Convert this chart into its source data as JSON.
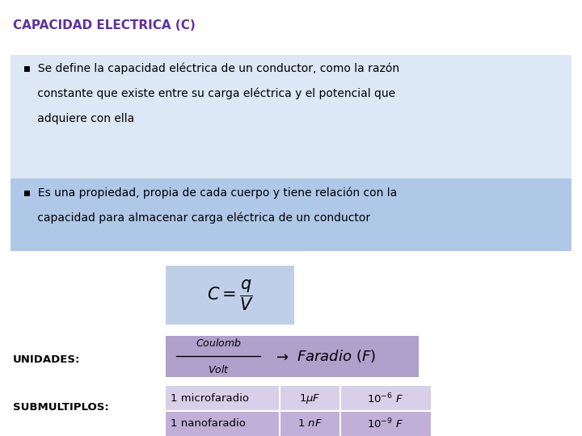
{
  "title": "CAPACIDAD ELECTRICA (C)",
  "title_color": "#6030a0",
  "background_color": "#ffffff",
  "bullet1_line1": "  ▪  Se define la capacidad eléctrica de un conductor, como la razón",
  "bullet1_line2": "      constante que existe entre su carga eléctrica y el potencial que",
  "bullet1_line3": "      adquiere con ella",
  "bullet2_line1": "  ▪  Es una propiedad, propia de cada cuerpo y tiene relación con la",
  "bullet2_line2": "      capacidad para almacenar carga eléctrica de un conductor",
  "bullet_bg1": "#dce8f5",
  "bullet_bg2": "#b0c8e8",
  "formula_bg": "#c0cfe8",
  "units_bg": "#b0a0cc",
  "table_row1_bg": "#d8d0e8",
  "table_row2_bg": "#c0b0d8",
  "table_row3_bg": "#d8d0e8",
  "label_unidades": "UNIDADES:",
  "label_submultiplos": "SUBMULTIPLOS:",
  "text_color": "#000000",
  "title_fontsize": 11,
  "bullet_fontsize": 10,
  "label_fontsize": 9.5,
  "table_fontsize": 9.5
}
